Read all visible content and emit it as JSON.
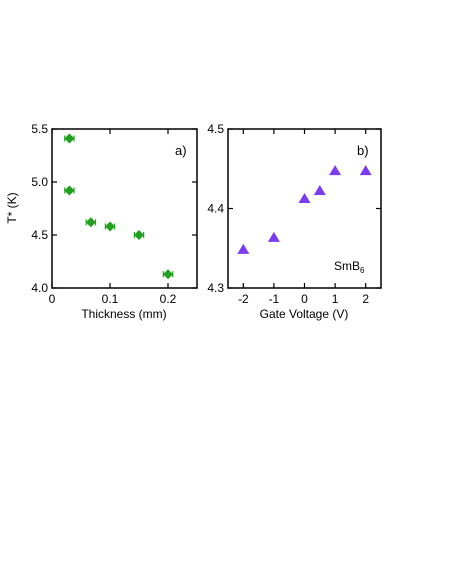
{
  "chart_data": [
    {
      "type": "scatter",
      "panel_label": "a)",
      "xlabel": "Thickness (mm)",
      "ylabel": "T* (K)",
      "xlim": [
        0,
        0.25
      ],
      "ylim": [
        4.0,
        5.5
      ],
      "xticks": [
        0,
        0.1,
        0.2
      ],
      "xtick_labels": [
        "0",
        "0.1",
        "0.2"
      ],
      "yticks": [
        4.0,
        4.5,
        5.0,
        5.5
      ],
      "ytick_labels": [
        "4.0",
        "4.5",
        "5.0",
        "5.5"
      ],
      "marker": "diamond",
      "color": "#22a020",
      "xerr": 0.008,
      "points": [
        {
          "x": 0.03,
          "y": 5.41
        },
        {
          "x": 0.03,
          "y": 4.92
        },
        {
          "x": 0.067,
          "y": 4.62
        },
        {
          "x": 0.1,
          "y": 4.58
        },
        {
          "x": 0.15,
          "y": 4.5
        },
        {
          "x": 0.2,
          "y": 4.13
        }
      ]
    },
    {
      "type": "scatter",
      "panel_label": "b)",
      "annotation": "SmB",
      "annotation_sub": "6",
      "xlabel": "Gate Voltage (V)",
      "ylabel": "",
      "xlim": [
        -2.5,
        2.5
      ],
      "ylim": [
        4.3,
        4.5
      ],
      "xticks": [
        -2,
        -1,
        0,
        1,
        2
      ],
      "xtick_labels": [
        "-2",
        "-1",
        "0",
        "1",
        "2"
      ],
      "yticks": [
        4.3,
        4.4,
        4.5
      ],
      "ytick_labels": [
        "4.3",
        "4.4",
        "4.5"
      ],
      "marker": "triangle",
      "color": "#7b3cf0",
      "points": [
        {
          "x": -2,
          "y": 4.348
        },
        {
          "x": -1,
          "y": 4.363
        },
        {
          "x": 0,
          "y": 4.412
        },
        {
          "x": 0.5,
          "y": 4.422
        },
        {
          "x": 1,
          "y": 4.447
        },
        {
          "x": 2,
          "y": 4.447
        }
      ]
    }
  ]
}
